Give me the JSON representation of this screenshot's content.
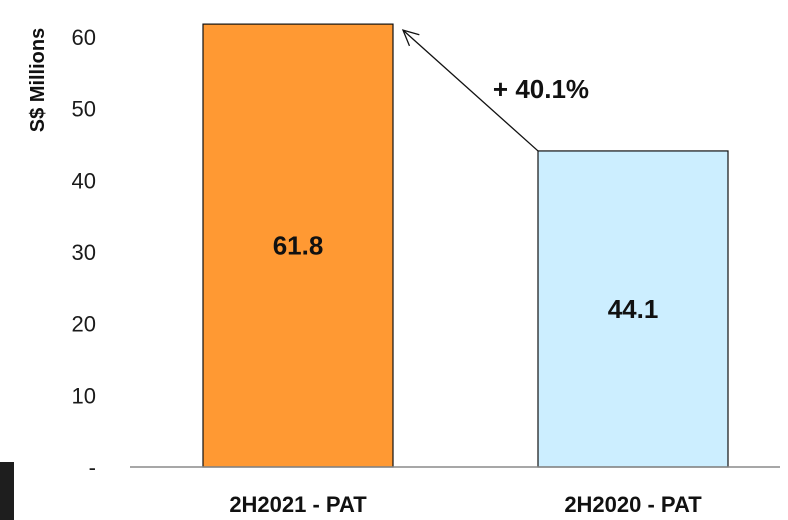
{
  "chart_data": {
    "type": "bar",
    "categories": [
      "2H2021 - PAT",
      "2H2020 - PAT"
    ],
    "values": [
      61.8,
      44.1
    ],
    "data_labels": [
      "61.8",
      "44.1"
    ],
    "ylabel": "S$ Millions",
    "ylim": [
      0,
      60
    ],
    "yticks": [
      0,
      10,
      20,
      30,
      40,
      50,
      60
    ],
    "ytick_labels": [
      "-",
      "10",
      "20",
      "30",
      "40",
      "50",
      "60"
    ],
    "colors": [
      "#FF9933",
      "#CCEEFF"
    ],
    "grid": false,
    "annotation": "+ 40.1%"
  }
}
